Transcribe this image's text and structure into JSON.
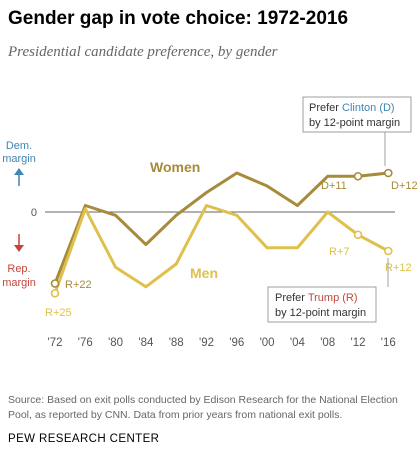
{
  "title": "Gender gap in vote choice: 1972-2016",
  "subtitle": "Presidential candidate preference, by gender",
  "source": "Source: Based on exit polls conducted by Edison Research for the National Election Pool, as reported by CNN. Data from prior years from national exit polls.",
  "brand": "PEW RESEARCH CENTER",
  "colors": {
    "women": "#a68b3a",
    "men": "#dfc04c",
    "dem": "#3f86b4",
    "rep": "#c4463a",
    "axis": "#666666",
    "text": "#555555"
  },
  "chart_data": {
    "type": "line",
    "x": [
      "'72",
      "'76",
      "'80",
      "'84",
      "'88",
      "'92",
      "'96",
      "'00",
      "'04",
      "'08",
      "'12",
      "'16"
    ],
    "ylim": [
      -28,
      18
    ],
    "series": [
      {
        "name": "Women",
        "values": [
          -22,
          2,
          -1,
          -10,
          -1,
          6,
          12,
          8,
          2,
          11,
          11,
          12
        ]
      },
      {
        "name": "Men",
        "values": [
          -25,
          1,
          -17,
          -23,
          -16,
          2,
          -1,
          -11,
          -11,
          0,
          -7,
          -12
        ]
      }
    ],
    "axis_labels": {
      "dem": [
        "Dem.",
        "margin"
      ],
      "zero": "0",
      "rep": [
        "Rep.",
        "margin"
      ]
    },
    "data_labels": {
      "women_start": "R+22",
      "men_start": "R+25",
      "women_2012": "D+11",
      "women_2016": "D+12",
      "men_2012": "R+7",
      "men_2016": "R+12"
    },
    "callouts": {
      "clinton": {
        "line1_pre": "Prefer ",
        "line1_name": "Clinton (D)",
        "line2": "by 12-point margin"
      },
      "trump": {
        "line1_pre": "Prefer ",
        "line1_name": "Trump (R)",
        "line2": "by 12-point margin"
      }
    }
  }
}
